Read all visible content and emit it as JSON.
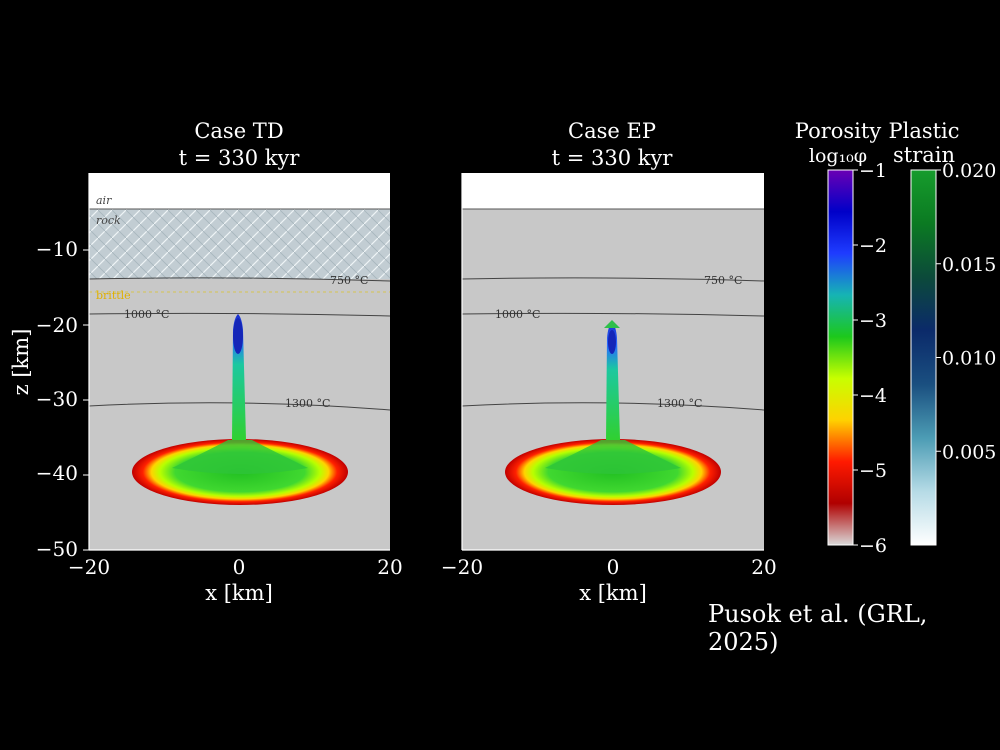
{
  "credit": "Pusok et al. (GRL, 2025)",
  "chart_data": [
    {
      "type": "heatmap",
      "title": "Case TD",
      "subtitle": "t = 330 kyr",
      "xlabel": "x [km]",
      "ylabel": "z [km]",
      "xlim": [
        -20,
        20
      ],
      "ylim": [
        -50,
        -3
      ],
      "x_ticks": [
        -20,
        0,
        20
      ],
      "y_ticks": [
        -10,
        -20,
        -30,
        -40,
        -50
      ],
      "layers": {
        "air": "air",
        "rock": "rock",
        "brittle": "brittle"
      },
      "isotherms": [
        {
          "label": "750 °C",
          "z": -14
        },
        {
          "label": "1000 °C",
          "z": -19
        },
        {
          "label": "1300 °C",
          "z": -31
        }
      ]
    },
    {
      "type": "heatmap",
      "title": "Case EP",
      "subtitle": "t = 330 kyr",
      "xlabel": "x [km]",
      "ylabel": "",
      "xlim": [
        -20,
        20
      ],
      "ylim": [
        -50,
        -3
      ],
      "x_ticks": [
        -20,
        0,
        20
      ],
      "isotherms": [
        {
          "label": "750 °C",
          "z": -14
        },
        {
          "label": "1000 °C",
          "z": -19
        },
        {
          "label": "1300 °C",
          "z": -31
        }
      ]
    }
  ],
  "colorbars": [
    {
      "title": "Porosity",
      "subtitle": "log₁₀φ",
      "range": [
        -6,
        -1
      ],
      "ticks": [
        -1,
        -2,
        -3,
        -4,
        -5,
        -6
      ],
      "tick_labels": [
        "−1",
        "−2",
        "−3",
        "−4",
        "−5",
        "−6"
      ],
      "colors": [
        "#d9d9d9",
        "#b00000",
        "#ff1a00",
        "#ffd200",
        "#c8ff00",
        "#1cc81c",
        "#16b4b4",
        "#1e3cff",
        "#0000c8",
        "#6a00b4"
      ]
    },
    {
      "title": "Plastic",
      "subtitle": "strain",
      "range": [
        0,
        0.02
      ],
      "ticks": [
        0.005,
        0.01,
        0.015,
        0.02
      ],
      "tick_labels": [
        "0.005",
        "0.010",
        "0.015",
        "0.020"
      ],
      "colors": [
        "#ffffff",
        "#b6dbe6",
        "#4c9cb4",
        "#1a4f80",
        "#0b2a6a",
        "#0c4a3a",
        "#0b7a22",
        "#169c2c"
      ]
    }
  ]
}
